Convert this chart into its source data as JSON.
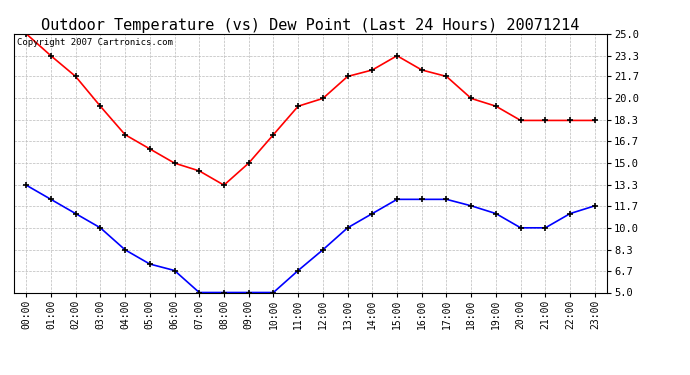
{
  "title": "Outdoor Temperature (vs) Dew Point (Last 24 Hours) 20071214",
  "copyright_text": "Copyright 2007 Cartronics.com",
  "hours": [
    "00:00",
    "01:00",
    "02:00",
    "03:00",
    "04:00",
    "05:00",
    "06:00",
    "07:00",
    "08:00",
    "09:00",
    "10:00",
    "11:00",
    "12:00",
    "13:00",
    "14:00",
    "15:00",
    "16:00",
    "17:00",
    "18:00",
    "19:00",
    "20:00",
    "21:00",
    "22:00",
    "23:00"
  ],
  "temp_red": [
    25.0,
    23.3,
    21.7,
    19.4,
    17.2,
    16.1,
    15.0,
    14.4,
    13.3,
    15.0,
    17.2,
    19.4,
    20.0,
    21.7,
    22.2,
    23.3,
    22.2,
    21.7,
    20.0,
    19.4,
    18.3,
    18.3,
    18.3,
    18.3
  ],
  "dew_blue": [
    13.3,
    12.2,
    11.1,
    10.0,
    8.3,
    7.2,
    6.7,
    5.0,
    5.0,
    5.0,
    5.0,
    6.7,
    8.3,
    10.0,
    11.1,
    12.2,
    12.2,
    12.2,
    11.7,
    11.1,
    10.0,
    10.0,
    11.1,
    11.7
  ],
  "ylim_min": 5.0,
  "ylim_max": 25.0,
  "yticks": [
    5.0,
    6.7,
    8.3,
    10.0,
    11.7,
    13.3,
    15.0,
    16.7,
    18.3,
    20.0,
    21.7,
    23.3,
    25.0
  ],
  "red_color": "#FF0000",
  "blue_color": "#0000FF",
  "bg_color": "#FFFFFF",
  "grid_color": "#BBBBBB",
  "title_fontsize": 11,
  "copyright_fontsize": 6.5,
  "xtick_fontsize": 7,
  "ytick_fontsize": 7.5
}
